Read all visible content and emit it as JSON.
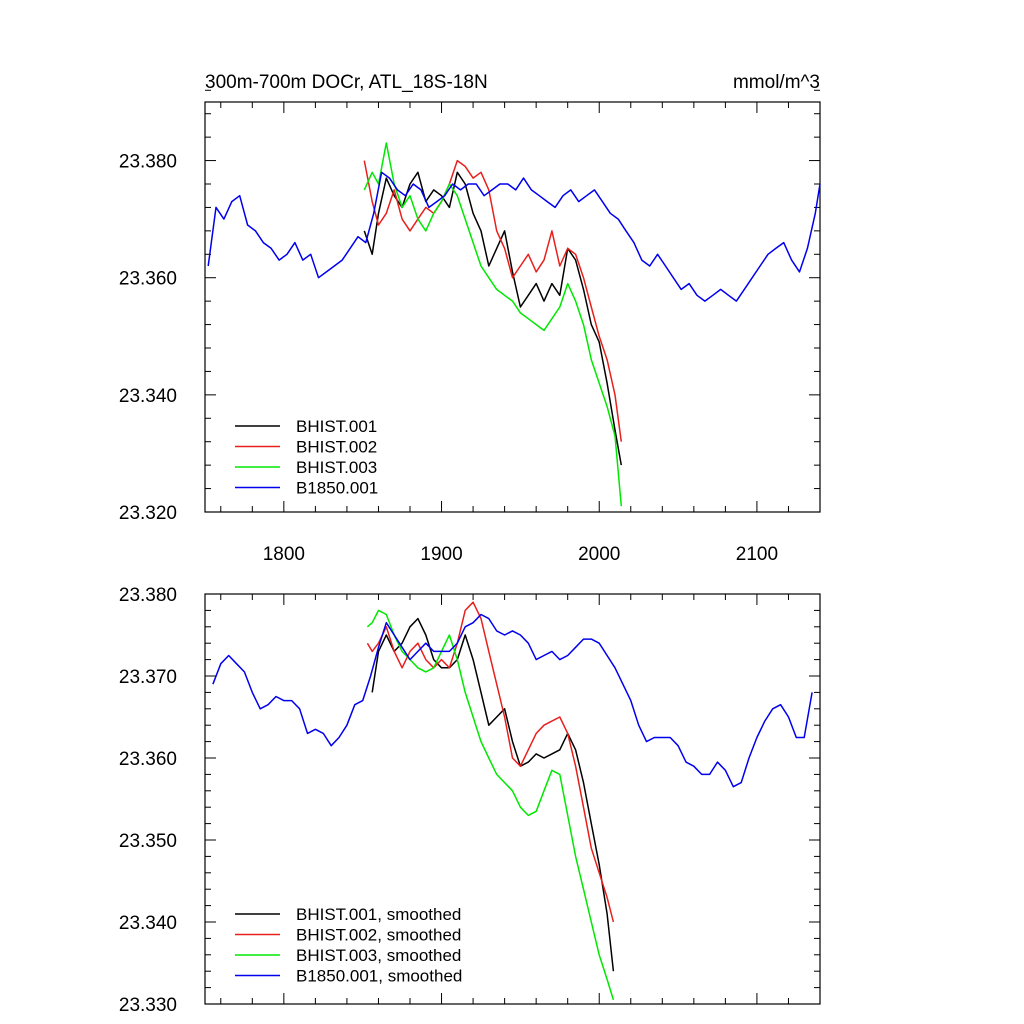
{
  "colors": {
    "black": "#000000",
    "red": "#e8201c",
    "green": "#00e800",
    "blue": "#0000ee"
  },
  "chart_data": [
    {
      "type": "line",
      "title": "300m-700m DOCr, ATL_18S-18N",
      "units": "mmol/m^3",
      "xlim": [
        1750,
        2140
      ],
      "ylim": [
        23.32,
        23.39
      ],
      "xticks": [
        1800,
        1900,
        2000,
        2100
      ],
      "xtick_labels": [
        "1800",
        "1900",
        "2000",
        "2100"
      ],
      "yticks": [
        23.32,
        23.34,
        23.36,
        23.38
      ],
      "ytick_labels": [
        "23.320",
        "23.340",
        "23.360",
        "23.380"
      ],
      "legend_position": "bottom-left",
      "series": [
        {
          "name": "BHIST.001",
          "color": "#000000",
          "x": [
            1851,
            1856,
            1860,
            1865,
            1870,
            1875,
            1880,
            1885,
            1890,
            1895,
            1900,
            1905,
            1910,
            1915,
            1920,
            1925,
            1930,
            1935,
            1940,
            1945,
            1950,
            1955,
            1960,
            1965,
            1970,
            1975,
            1980,
            1985,
            1990,
            1995,
            2000,
            2005,
            2010,
            2014
          ],
          "y": [
            23.368,
            23.364,
            23.371,
            23.377,
            23.374,
            23.372,
            23.376,
            23.378,
            23.373,
            23.375,
            23.374,
            23.372,
            23.378,
            23.376,
            23.371,
            23.368,
            23.362,
            23.365,
            23.368,
            23.361,
            23.355,
            23.357,
            23.359,
            23.356,
            23.359,
            23.357,
            23.365,
            23.363,
            23.358,
            23.352,
            23.349,
            23.342,
            23.334,
            23.328
          ]
        },
        {
          "name": "BHIST.002",
          "color": "#e8201c",
          "x": [
            1851,
            1856,
            1860,
            1865,
            1870,
            1875,
            1880,
            1885,
            1890,
            1895,
            1900,
            1905,
            1910,
            1915,
            1920,
            1925,
            1930,
            1935,
            1940,
            1945,
            1950,
            1955,
            1960,
            1965,
            1970,
            1975,
            1980,
            1985,
            1990,
            1995,
            2000,
            2005,
            2010,
            2014
          ],
          "y": [
            23.38,
            23.373,
            23.369,
            23.371,
            23.375,
            23.37,
            23.368,
            23.37,
            23.372,
            23.371,
            23.373,
            23.376,
            23.38,
            23.379,
            23.377,
            23.378,
            23.375,
            23.368,
            23.365,
            23.36,
            23.362,
            23.364,
            23.361,
            23.363,
            23.368,
            23.362,
            23.365,
            23.364,
            23.36,
            23.355,
            23.35,
            23.346,
            23.34,
            23.332
          ]
        },
        {
          "name": "BHIST.003",
          "color": "#00e800",
          "x": [
            1851,
            1856,
            1860,
            1865,
            1870,
            1875,
            1880,
            1885,
            1890,
            1895,
            1900,
            1905,
            1910,
            1915,
            1920,
            1925,
            1930,
            1935,
            1940,
            1945,
            1950,
            1955,
            1960,
            1965,
            1970,
            1975,
            1980,
            1985,
            1990,
            1995,
            2000,
            2005,
            2010,
            2014
          ],
          "y": [
            23.375,
            23.378,
            23.376,
            23.383,
            23.376,
            23.372,
            23.374,
            23.37,
            23.368,
            23.371,
            23.373,
            23.376,
            23.374,
            23.37,
            23.366,
            23.362,
            23.36,
            23.358,
            23.357,
            23.356,
            23.354,
            23.353,
            23.352,
            23.351,
            23.353,
            23.355,
            23.359,
            23.356,
            23.352,
            23.346,
            23.342,
            23.338,
            23.333,
            23.321
          ]
        },
        {
          "name": "B1850.001",
          "color": "#0000ee",
          "x": [
            1752,
            1757,
            1762,
            1767,
            1772,
            1777,
            1782,
            1787,
            1792,
            1797,
            1802,
            1807,
            1812,
            1817,
            1822,
            1827,
            1832,
            1837,
            1842,
            1847,
            1852,
            1857,
            1862,
            1867,
            1872,
            1877,
            1882,
            1887,
            1892,
            1897,
            1902,
            1907,
            1912,
            1917,
            1922,
            1927,
            1932,
            1937,
            1942,
            1947,
            1952,
            1957,
            1962,
            1967,
            1972,
            1977,
            1982,
            1987,
            1992,
            1997,
            2002,
            2007,
            2012,
            2017,
            2022,
            2027,
            2032,
            2037,
            2042,
            2047,
            2052,
            2057,
            2062,
            2067,
            2072,
            2077,
            2082,
            2087,
            2092,
            2097,
            2102,
            2107,
            2112,
            2117,
            2122,
            2127,
            2132,
            2137,
            2140
          ],
          "y": [
            23.362,
            23.372,
            23.37,
            23.373,
            23.374,
            23.369,
            23.368,
            23.366,
            23.365,
            23.363,
            23.364,
            23.366,
            23.363,
            23.364,
            23.36,
            23.361,
            23.362,
            23.363,
            23.365,
            23.367,
            23.366,
            23.371,
            23.378,
            23.377,
            23.375,
            23.374,
            23.376,
            23.375,
            23.372,
            23.373,
            23.374,
            23.376,
            23.375,
            23.376,
            23.376,
            23.374,
            23.375,
            23.376,
            23.376,
            23.375,
            23.377,
            23.375,
            23.374,
            23.373,
            23.372,
            23.374,
            23.375,
            23.373,
            23.374,
            23.375,
            23.373,
            23.371,
            23.37,
            23.368,
            23.366,
            23.363,
            23.362,
            23.364,
            23.362,
            23.36,
            23.358,
            23.359,
            23.357,
            23.356,
            23.357,
            23.358,
            23.357,
            23.356,
            23.358,
            23.36,
            23.362,
            23.364,
            23.365,
            23.366,
            23.363,
            23.361,
            23.365,
            23.371,
            23.376
          ]
        }
      ]
    },
    {
      "type": "line",
      "title": "",
      "xlim": [
        1750,
        2140
      ],
      "ylim": [
        23.33,
        23.38
      ],
      "xticks": [
        1800,
        1900,
        2000,
        2100
      ],
      "yticks": [
        23.33,
        23.34,
        23.35,
        23.36,
        23.37,
        23.38
      ],
      "ytick_labels": [
        "23.330",
        "23.340",
        "23.350",
        "23.360",
        "23.370",
        "23.380"
      ],
      "legend_position": "bottom-left",
      "series": [
        {
          "name": "BHIST.001, smoothed",
          "color": "#000000",
          "x": [
            1856,
            1860,
            1865,
            1870,
            1875,
            1880,
            1885,
            1890,
            1895,
            1900,
            1905,
            1910,
            1915,
            1920,
            1925,
            1930,
            1935,
            1940,
            1945,
            1950,
            1955,
            1960,
            1965,
            1970,
            1975,
            1980,
            1985,
            1990,
            1995,
            2000,
            2005,
            2009
          ],
          "y": [
            23.368,
            23.373,
            23.375,
            23.373,
            23.374,
            23.376,
            23.377,
            23.375,
            23.372,
            23.371,
            23.371,
            23.372,
            23.375,
            23.372,
            23.368,
            23.364,
            23.365,
            23.366,
            23.362,
            23.359,
            23.3595,
            23.3605,
            23.36,
            23.3605,
            23.361,
            23.363,
            23.361,
            23.357,
            23.352,
            23.347,
            23.341,
            23.334
          ]
        },
        {
          "name": "BHIST.002, smoothed",
          "color": "#e8201c",
          "x": [
            1853,
            1856,
            1860,
            1865,
            1870,
            1875,
            1880,
            1885,
            1890,
            1895,
            1900,
            1905,
            1910,
            1915,
            1920,
            1925,
            1930,
            1935,
            1940,
            1945,
            1950,
            1955,
            1960,
            1965,
            1970,
            1975,
            1980,
            1985,
            1990,
            1995,
            2000,
            2005,
            2009
          ],
          "y": [
            23.374,
            23.373,
            23.374,
            23.376,
            23.373,
            23.371,
            23.373,
            23.374,
            23.372,
            23.371,
            23.372,
            23.371,
            23.374,
            23.378,
            23.379,
            23.377,
            23.373,
            23.369,
            23.365,
            23.36,
            23.359,
            23.361,
            23.363,
            23.364,
            23.3645,
            23.365,
            23.363,
            23.359,
            23.354,
            23.349,
            23.346,
            23.343,
            23.34
          ]
        },
        {
          "name": "BHIST.003, smoothed",
          "color": "#00e800",
          "x": [
            1853,
            1856,
            1860,
            1865,
            1870,
            1875,
            1880,
            1885,
            1890,
            1895,
            1900,
            1905,
            1910,
            1915,
            1920,
            1925,
            1930,
            1935,
            1940,
            1945,
            1950,
            1955,
            1960,
            1965,
            1970,
            1975,
            1980,
            1985,
            1990,
            1995,
            2000,
            2005,
            2009
          ],
          "y": [
            23.376,
            23.3765,
            23.378,
            23.3775,
            23.375,
            23.373,
            23.372,
            23.371,
            23.3705,
            23.371,
            23.373,
            23.375,
            23.372,
            23.368,
            23.365,
            23.362,
            23.36,
            23.358,
            23.357,
            23.356,
            23.354,
            23.353,
            23.3535,
            23.356,
            23.3585,
            23.358,
            23.353,
            23.348,
            23.344,
            23.34,
            23.336,
            23.333,
            23.3305
          ]
        },
        {
          "name": "B1850.001, smoothed",
          "color": "#0000ee",
          "x": [
            1755,
            1760,
            1765,
            1770,
            1775,
            1780,
            1785,
            1790,
            1795,
            1800,
            1805,
            1810,
            1815,
            1820,
            1825,
            1830,
            1835,
            1840,
            1845,
            1850,
            1855,
            1860,
            1865,
            1870,
            1875,
            1880,
            1885,
            1890,
            1895,
            1900,
            1905,
            1910,
            1915,
            1920,
            1925,
            1930,
            1935,
            1940,
            1945,
            1950,
            1955,
            1960,
            1965,
            1970,
            1975,
            1980,
            1985,
            1990,
            1995,
            2000,
            2005,
            2010,
            2015,
            2020,
            2025,
            2030,
            2035,
            2040,
            2045,
            2050,
            2055,
            2060,
            2065,
            2070,
            2075,
            2080,
            2085,
            2090,
            2095,
            2100,
            2105,
            2110,
            2115,
            2120,
            2125,
            2130,
            2135
          ],
          "y": [
            23.369,
            23.3715,
            23.3725,
            23.3715,
            23.3705,
            23.368,
            23.366,
            23.3665,
            23.3675,
            23.367,
            23.367,
            23.366,
            23.363,
            23.3635,
            23.363,
            23.3615,
            23.3625,
            23.364,
            23.3665,
            23.367,
            23.37,
            23.3735,
            23.3765,
            23.375,
            23.3735,
            23.372,
            23.373,
            23.374,
            23.373,
            23.373,
            23.373,
            23.374,
            23.376,
            23.3765,
            23.3775,
            23.377,
            23.3755,
            23.375,
            23.3755,
            23.375,
            23.374,
            23.372,
            23.3725,
            23.373,
            23.372,
            23.3725,
            23.3735,
            23.3745,
            23.3745,
            23.374,
            23.3725,
            23.371,
            23.369,
            23.367,
            23.364,
            23.362,
            23.3625,
            23.3625,
            23.3625,
            23.3615,
            23.3595,
            23.359,
            23.358,
            23.358,
            23.3595,
            23.3585,
            23.3565,
            23.357,
            23.36,
            23.3625,
            23.3645,
            23.366,
            23.3665,
            23.365,
            23.3625,
            23.3625,
            23.368
          ]
        }
      ]
    }
  ]
}
